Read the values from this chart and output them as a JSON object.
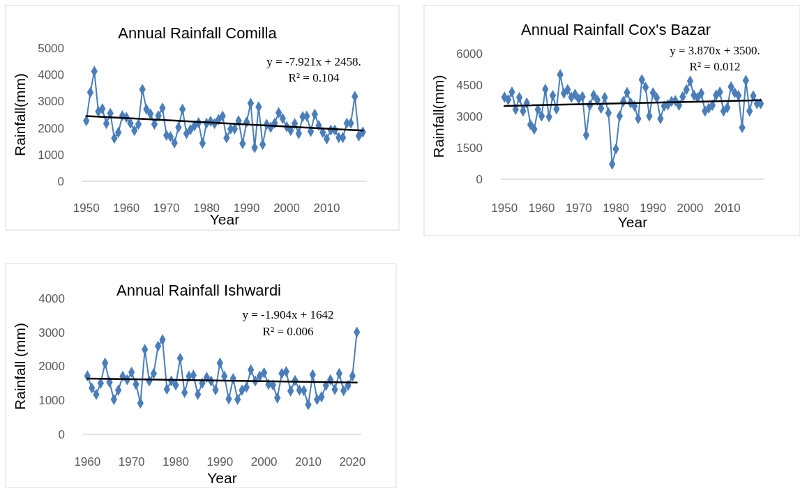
{
  "chart_data": [
    {
      "type": "line",
      "title": "Annual Rainfall Comilla",
      "xlabel": "Year",
      "ylabel": "Rainfall(mm)",
      "xlim": [
        1949,
        2020
      ],
      "xticks": [
        1950,
        1960,
        1970,
        1980,
        1990,
        2000,
        2010
      ],
      "ylim": [
        0,
        5000
      ],
      "yticks": [
        0,
        1000,
        2000,
        3000,
        4000,
        5000
      ],
      "grid": false,
      "annotations": [
        "y = -7.921x + 2458.",
        "R² = 0.104"
      ],
      "series": [
        {
          "color": "#4a7ebb",
          "marker": "diamond",
          "x": [
            1950,
            1951,
            1952,
            1953,
            1954,
            1955,
            1956,
            1957,
            1958,
            1959,
            1960,
            1961,
            1962,
            1963,
            1964,
            1965,
            1966,
            1967,
            1968,
            1969,
            1970,
            1971,
            1972,
            1973,
            1974,
            1975,
            1976,
            1977,
            1978,
            1979,
            1980,
            1981,
            1982,
            1983,
            1984,
            1985,
            1986,
            1987,
            1988,
            1989,
            1990,
            1991,
            1992,
            1993,
            1994,
            1995,
            1996,
            1997,
            1998,
            1999,
            2000,
            2001,
            2002,
            2003,
            2004,
            2005,
            2006,
            2007,
            2008,
            2009,
            2010,
            2011,
            2012,
            2013,
            2014,
            2015,
            2016,
            2017,
            2018,
            2019
          ],
          "values": [
            2270,
            3335,
            4130,
            2620,
            2720,
            2165,
            2550,
            1615,
            1835,
            2460,
            2400,
            2180,
            1905,
            2140,
            3450,
            2705,
            2530,
            2140,
            2460,
            2750,
            1730,
            1675,
            1440,
            2025,
            2705,
            1790,
            1940,
            2080,
            2200,
            1425,
            2180,
            2250,
            2165,
            2315,
            2445,
            1630,
            1965,
            1965,
            2270,
            1415,
            2225,
            2925,
            1265,
            2795,
            1380,
            2140,
            2025,
            2180,
            2575,
            2355,
            2050,
            1905,
            2165,
            1790,
            2425,
            2445,
            1875,
            2515,
            2095,
            1835,
            1590,
            1920,
            1920,
            1640,
            1640,
            2180,
            2180,
            3185,
            1700,
            1850
          ]
        },
        {
          "type": "line",
          "color": "#000000",
          "marker": "none",
          "x": [
            1950,
            2019
          ],
          "values": [
            2450,
            1904
          ]
        }
      ]
    },
    {
      "type": "line",
      "title": "Annual Rainfall Cox's Bazar",
      "xlabel": "Year",
      "ylabel": "Rainfall(mm)",
      "xlim": [
        1949,
        2020
      ],
      "xticks": [
        1950,
        1960,
        1970,
        1980,
        1990,
        2000,
        2010
      ],
      "ylim": [
        0,
        6000
      ],
      "yticks": [
        0,
        1500,
        3000,
        4500,
        6000
      ],
      "grid": false,
      "annotations": [
        "y = 3.870x + 3500.",
        "R² = 0.012"
      ],
      "series": [
        {
          "color": "#4a7ebb",
          "marker": "diamond",
          "x": [
            1950,
            1951,
            1952,
            1953,
            1954,
            1955,
            1956,
            1957,
            1958,
            1959,
            1960,
            1961,
            1962,
            1963,
            1964,
            1965,
            1966,
            1967,
            1968,
            1969,
            1970,
            1971,
            1972,
            1973,
            1974,
            1975,
            1976,
            1977,
            1978,
            1979,
            1980,
            1981,
            1982,
            1983,
            1984,
            1985,
            1986,
            1987,
            1988,
            1989,
            1990,
            1991,
            1992,
            1993,
            1994,
            1995,
            1996,
            1997,
            1998,
            1999,
            2000,
            2001,
            2002,
            2003,
            2004,
            2005,
            2006,
            2007,
            2008,
            2009,
            2010,
            2011,
            2012,
            2013,
            2014,
            2015,
            2016,
            2017,
            2018,
            2019
          ],
          "values": [
            3920,
            3800,
            4165,
            3335,
            3910,
            3255,
            3645,
            2610,
            2390,
            3335,
            3020,
            4300,
            2980,
            4000,
            3355,
            5000,
            4110,
            4280,
            3920,
            4055,
            3835,
            3945,
            2110,
            3535,
            4020,
            3780,
            3390,
            3910,
            3165,
            720,
            1445,
            3020,
            3720,
            4145,
            3645,
            3500,
            2890,
            4755,
            4390,
            3020,
            4135,
            3890,
            2890,
            3500,
            3555,
            3720,
            3755,
            3535,
            3945,
            4280,
            4690,
            4020,
            3890,
            4110,
            3255,
            3390,
            3535,
            4020,
            4165,
            3255,
            3420,
            4420,
            4135,
            4000,
            2465,
            4720,
            3255,
            3980,
            3610,
            3610
          ]
        },
        {
          "type": "line",
          "color": "#000000",
          "marker": "none",
          "x": [
            1950,
            2019
          ],
          "values": [
            3504,
            3771
          ]
        }
      ]
    },
    {
      "type": "line",
      "title": "Annual Rainfall Ishwardi",
      "xlabel": "Year",
      "ylabel": "Rainfall (mm)",
      "xlim": [
        1959,
        2022
      ],
      "xticks": [
        1960,
        1970,
        1980,
        1990,
        2000,
        2010,
        2020
      ],
      "ylim": [
        0,
        4000
      ],
      "yticks": [
        0,
        1000,
        2000,
        3000,
        4000
      ],
      "grid": false,
      "annotations": [
        "y = -1.904x + 1642",
        "R² = 0.006"
      ],
      "series": [
        {
          "color": "#4a7ebb",
          "marker": "diamond",
          "x": [
            1960,
            1961,
            1962,
            1963,
            1964,
            1965,
            1966,
            1967,
            1968,
            1969,
            1970,
            1971,
            1972,
            1973,
            1974,
            1975,
            1976,
            1977,
            1978,
            1979,
            1980,
            1981,
            1982,
            1983,
            1984,
            1985,
            1986,
            1987,
            1988,
            1989,
            1990,
            1991,
            1992,
            1993,
            1994,
            1995,
            1996,
            1997,
            1998,
            1999,
            2000,
            2001,
            2002,
            2003,
            2004,
            2005,
            2006,
            2007,
            2008,
            2009,
            2010,
            2011,
            2012,
            2013,
            2014,
            2015,
            2016,
            2017,
            2018,
            2019,
            2020,
            2021
          ],
          "values": [
            1720,
            1365,
            1175,
            1505,
            2095,
            1535,
            1025,
            1300,
            1710,
            1605,
            1825,
            1470,
            920,
            2495,
            1570,
            1790,
            2595,
            2785,
            1330,
            1570,
            1450,
            2235,
            1230,
            1710,
            1740,
            1175,
            1505,
            1675,
            1570,
            1310,
            2095,
            1710,
            1040,
            1640,
            1025,
            1300,
            1385,
            1900,
            1570,
            1710,
            1810,
            1470,
            1450,
            1070,
            1790,
            1845,
            1275,
            1585,
            1300,
            1285,
            875,
            1755,
            1025,
            1105,
            1435,
            1605,
            1320,
            1790,
            1285,
            1435,
            1720,
            3005
          ]
        },
        {
          "type": "line",
          "color": "#000000",
          "marker": "none",
          "x": [
            1960,
            2021
          ],
          "values": [
            1640,
            1524
          ]
        }
      ]
    }
  ]
}
